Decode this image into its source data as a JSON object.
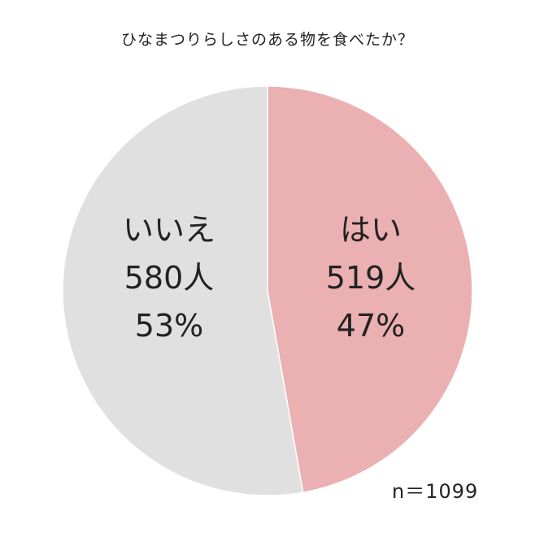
{
  "chart_data": {
    "type": "pie",
    "title": "ひなまつりらしさのある物を食べたか？",
    "slices": [
      {
        "label": "はい",
        "count_label": "519人",
        "percent_label": "47%",
        "value": 519,
        "color": "#ebb0b2"
      },
      {
        "label": "いいえ",
        "count_label": "580人",
        "percent_label": "53%",
        "value": 580,
        "color": "#e0e0e0"
      }
    ],
    "total": 1099,
    "annotation": "n＝1099"
  }
}
